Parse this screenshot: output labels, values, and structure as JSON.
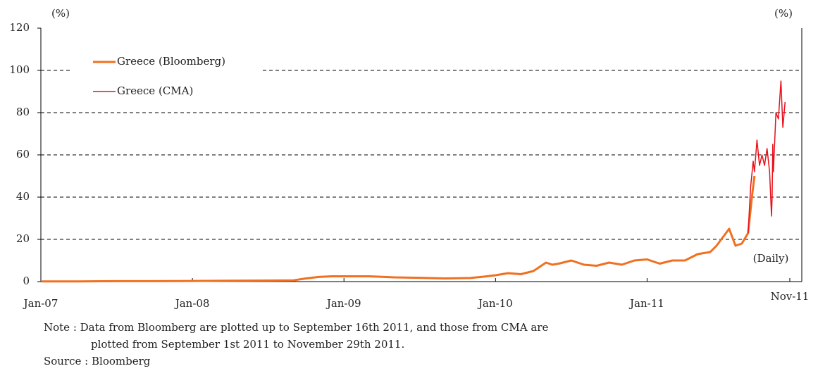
{
  "chart_data": {
    "type": "line",
    "y_label": "(%)",
    "y2_label": "(%)",
    "annotation": "(Daily)",
    "xlim": [
      0,
      60.25
    ],
    "xticks": [
      {
        "value": 0,
        "label": "Jan-07"
      },
      {
        "value": 12,
        "label": "Jan-08"
      },
      {
        "value": 24,
        "label": "Jan-09"
      },
      {
        "value": 36,
        "label": "Jan-10"
      },
      {
        "value": 48,
        "label": "Jan-11"
      },
      {
        "value": 59.3,
        "label": "Nov-11"
      }
    ],
    "ylim": [
      0,
      120
    ],
    "yticks": [
      0,
      20,
      40,
      60,
      80,
      100,
      120
    ],
    "grid": true,
    "legend": "top-left",
    "series": [
      {
        "name": "Greece (Bloomberg)",
        "color": "#f07020",
        "width": 3,
        "x": [
          0,
          3,
          6,
          9,
          12,
          15,
          18,
          20,
          21,
          22,
          23,
          24,
          26,
          28,
          30,
          32,
          34,
          35,
          36,
          37,
          38,
          39,
          40,
          40.5,
          41,
          42,
          43,
          44,
          45,
          46,
          47,
          48,
          49,
          50,
          51,
          52,
          53,
          53.5,
          54,
          54.5,
          55,
          55.5,
          56,
          56.3,
          56.5
        ],
        "values": [
          0.1,
          0.1,
          0.2,
          0.2,
          0.3,
          0.4,
          0.5,
          0.6,
          1.5,
          2.2,
          2.5,
          2.5,
          2.5,
          2,
          1.8,
          1.5,
          1.7,
          2.3,
          3,
          4,
          3.5,
          5,
          9,
          8,
          8.5,
          10,
          8,
          7.5,
          9,
          8,
          10,
          10.5,
          8.5,
          10,
          10,
          13,
          14,
          17,
          21,
          25,
          17,
          18,
          23,
          40,
          50
        ]
      },
      {
        "name": "Greece (CMA)",
        "color": "#e8101a",
        "width": 1.5,
        "x": [
          56,
          56.2,
          56.4,
          56.5,
          56.7,
          56.9,
          57.1,
          57.3,
          57.5,
          57.7,
          57.85,
          57.9,
          57.95,
          58,
          58.2,
          58.4,
          58.6,
          58.75,
          58.93
        ],
        "values": [
          23,
          45,
          57,
          52,
          67,
          55,
          60,
          55,
          63,
          52,
          31,
          40,
          65,
          52,
          80,
          77,
          95,
          73,
          85
        ]
      }
    ],
    "notes": [
      "Note : Data from Bloomberg are plotted up to September 16th 2011, and those from CMA are",
      "plotted from September 1st 2011 to November 29th 2011.",
      "Source : Bloomberg"
    ]
  }
}
